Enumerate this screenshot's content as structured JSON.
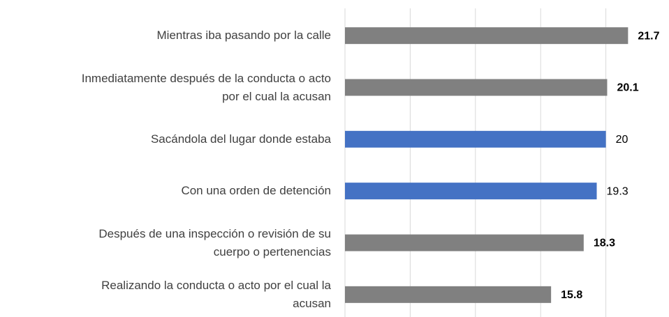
{
  "chart_data": {
    "type": "barh",
    "categories": [
      "Mientras iba pasando por la calle",
      "Inmediatamente después de la conducta o acto\npor el cual la acusan",
      "Sacándola del lugar donde estaba",
      "Con una orden de detención",
      "Después de una inspección o revisión de su\ncuerpo o pertenencias",
      "Realizando la conducta o acto por el cual la\nacusan"
    ],
    "values": [
      21.7,
      20.1,
      20.0,
      19.3,
      18.3,
      15.8
    ],
    "colors": [
      "#808080",
      "#808080",
      "#4472c4",
      "#4472c4",
      "#808080",
      "#808080"
    ],
    "label_bold": [
      true,
      true,
      false,
      false,
      true,
      true
    ],
    "xlim": [
      0,
      25
    ],
    "xticks": [
      0,
      5,
      10,
      15,
      20,
      25
    ],
    "grid": true
  }
}
